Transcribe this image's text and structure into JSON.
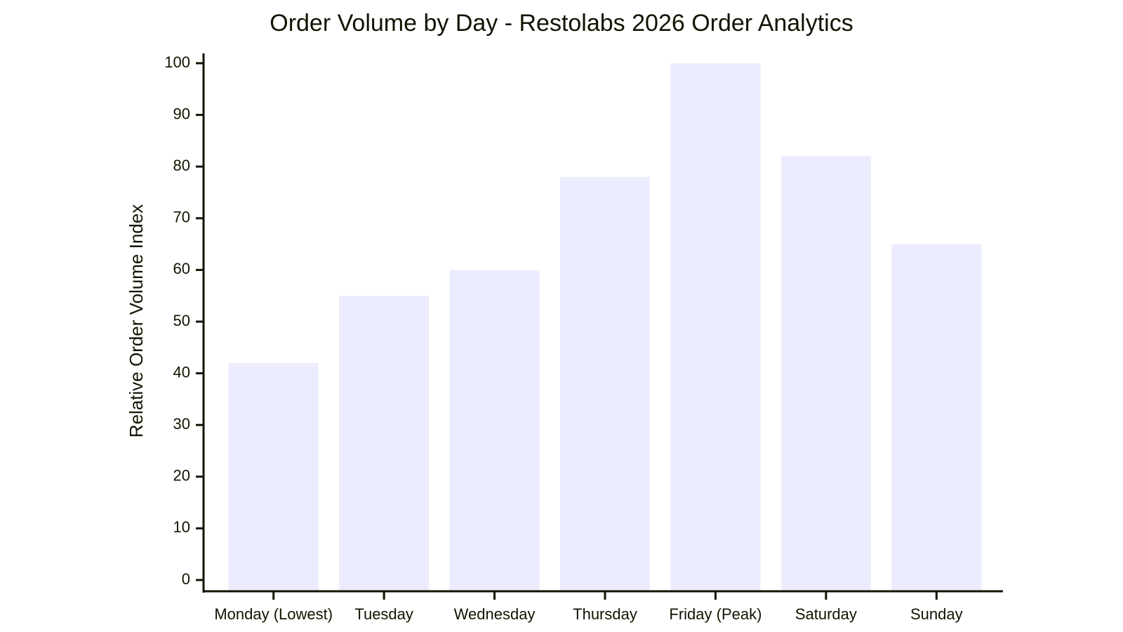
{
  "chart_data": {
    "type": "bar",
    "title": "Order Volume by Day - Restolabs 2026 Order Analytics",
    "y_label": "Relative Order Volume Index",
    "categories": [
      "Monday (Lowest)",
      "Tuesday",
      "Wednesday",
      "Thursday",
      "Friday (Peak)",
      "Saturday",
      "Sunday"
    ],
    "values": [
      42,
      55,
      60,
      78,
      100,
      82,
      65
    ],
    "color": "#ececff",
    "ylim": [
      0,
      100
    ],
    "yticks": [
      0,
      10,
      20,
      30,
      40,
      50,
      60,
      70,
      80,
      90,
      100
    ],
    "grid": false
  }
}
